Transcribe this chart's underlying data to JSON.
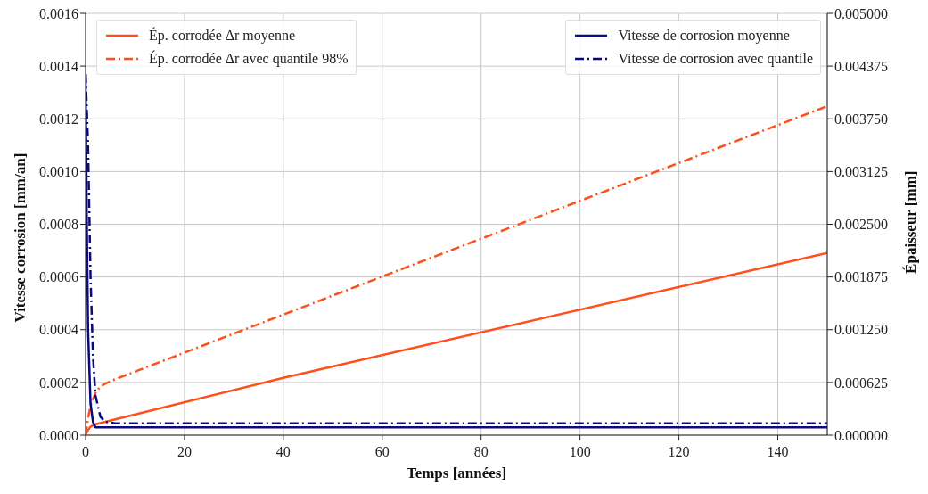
{
  "chart_data": {
    "type": "line",
    "xlabel": "Temps [années]",
    "ylabel": "Vitesse corrosion [mm/an]",
    "y2label": "Épaisseur [mm]",
    "xlim": [
      0,
      150
    ],
    "xticks": [
      0,
      20,
      40,
      60,
      80,
      100,
      120,
      140
    ],
    "ylim": [
      0,
      0.0016
    ],
    "yticks": [
      {
        "value": 0,
        "label": "0.0000"
      },
      {
        "value": 0.0002,
        "label": "0.0002"
      },
      {
        "value": 0.0004,
        "label": "0.0004"
      },
      {
        "value": 0.0006,
        "label": "0.0006"
      },
      {
        "value": 0.0008,
        "label": "0.0008"
      },
      {
        "value": 0.001,
        "label": "0.0010"
      },
      {
        "value": 0.0012,
        "label": "0.0012"
      },
      {
        "value": 0.0014,
        "label": "0.0014"
      },
      {
        "value": 0.0016,
        "label": "0.0016"
      }
    ],
    "y2lim": [
      0,
      0.005
    ],
    "y2ticks": [
      {
        "value": 0,
        "label": "0.000000"
      },
      {
        "value": 0.000625,
        "label": "0.000625"
      },
      {
        "value": 0.00125,
        "label": "0.001250"
      },
      {
        "value": 0.001875,
        "label": "0.001875"
      },
      {
        "value": 0.0025,
        "label": "0.002500"
      },
      {
        "value": 0.003125,
        "label": "0.003125"
      },
      {
        "value": 0.00375,
        "label": "0.003750"
      },
      {
        "value": 0.004375,
        "label": "0.004375"
      },
      {
        "value": 0.005,
        "label": "0.005000"
      }
    ],
    "grid": true,
    "legend": "top",
    "marker": "none",
    "series": [
      {
        "name": "Ép. corrodée Δr moyenne",
        "color": "#ff4f1a",
        "axis": "y2",
        "line_style": "solid",
        "x": [
          0,
          0.5,
          1,
          2,
          40,
          150
        ],
        "values": [
          0,
          6e-05,
          0.0001,
          0.00013,
          0.00068,
          0.00216
        ]
      },
      {
        "name": "Ép. corrodée Δr avec quantile 98%",
        "color": "#ff4f1a",
        "axis": "y2",
        "line_style": "dashdot",
        "x": [
          0,
          0.5,
          1,
          2,
          3,
          5,
          60,
          150
        ],
        "values": [
          0,
          0.0002,
          0.00035,
          0.0005,
          0.00058,
          0.00064,
          0.00188,
          0.0039
        ]
      },
      {
        "name": "Vitesse de corrosion moyenne",
        "color": "#0a0a80",
        "axis": "y",
        "line_style": "solid",
        "x": [
          0,
          0.25,
          0.5,
          1,
          1.5,
          2,
          150
        ],
        "values": [
          0.00137,
          0.0008,
          0.0004,
          0.00012,
          5e-05,
          3e-05,
          3e-05
        ]
      },
      {
        "name": "Vitesse de corrosion avec quantile",
        "color": "#0a0a80",
        "axis": "y",
        "line_style": "dashdot",
        "x": [
          0,
          0.5,
          1,
          1.5,
          2,
          3,
          4,
          6,
          150
        ],
        "values": [
          0.00137,
          0.0011,
          0.0006,
          0.0003,
          0.00015,
          7e-05,
          5e-05,
          4.5e-05,
          4.5e-05
        ]
      }
    ]
  }
}
